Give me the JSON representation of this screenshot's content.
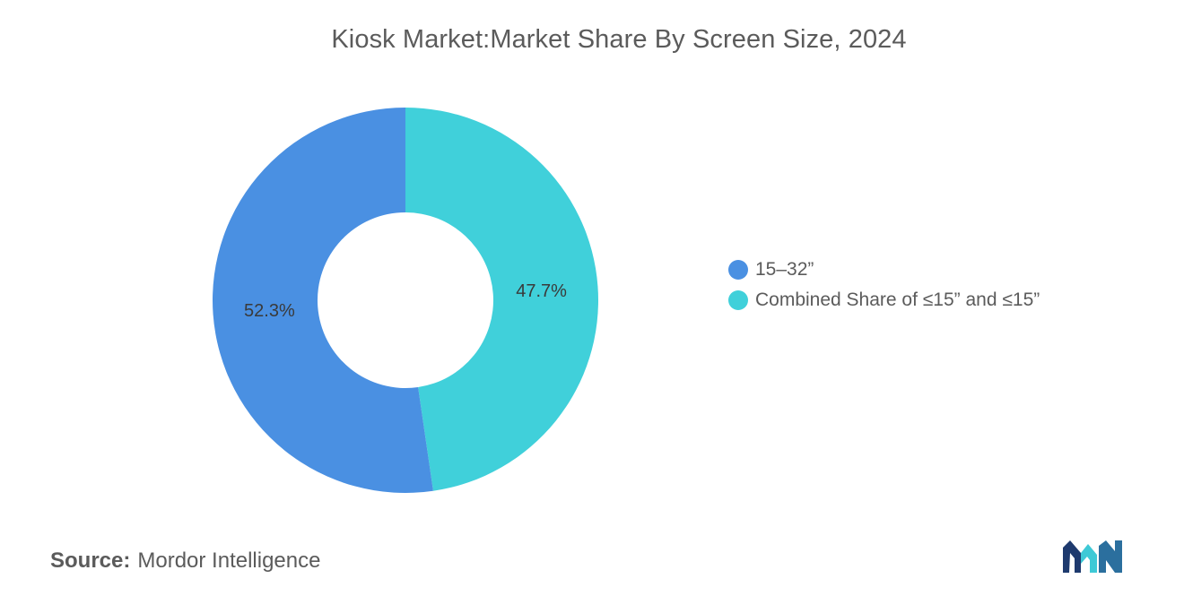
{
  "chart_data": {
    "type": "pie",
    "title": "Kiosk Market:Market Share By Screen Size, 2024",
    "donut": true,
    "series": [
      {
        "name": "15–32”",
        "value": 52.3,
        "label": "52.3%",
        "color": "#4a90e2"
      },
      {
        "name": "Combined Share of ≤15” and ≤15”",
        "value": 47.7,
        "label": "47.7%",
        "color": "#40d0da"
      }
    ],
    "legend_position": "right"
  },
  "legend": {
    "items": [
      {
        "label": "15–32”",
        "color": "#4a90e2"
      },
      {
        "label": "Combined Share of ≤15” and ≤15”",
        "color": "#40d0da"
      }
    ]
  },
  "source": {
    "prefix": "Source:",
    "name": "Mordor Intelligence"
  },
  "logo": {
    "icon": "mordor-intelligence-logo",
    "colors": [
      "#1e3a6e",
      "#3ec9d6"
    ]
  }
}
